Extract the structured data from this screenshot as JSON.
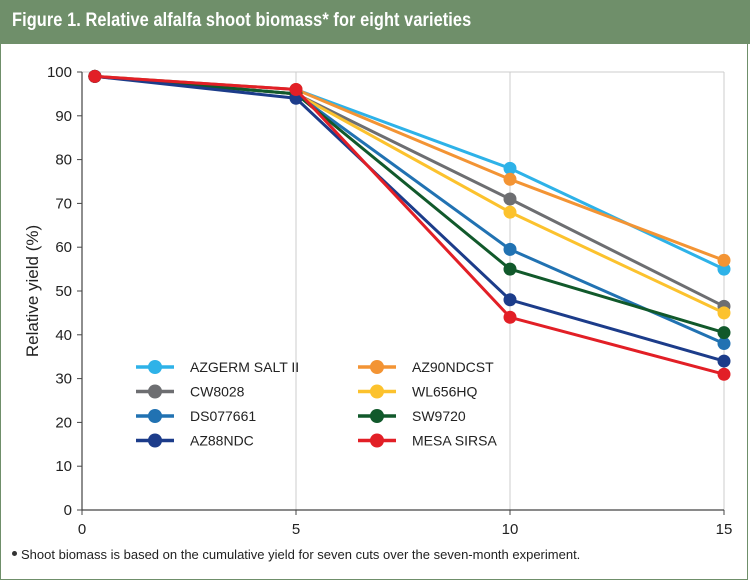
{
  "title": "Figure 1. Relative alfalfa shoot biomass* for eight varieties",
  "footnote": "Shoot biomass is based on the cumulative yield for seven cuts over the seven-month experiment.",
  "colors": {
    "header_bg": "#6f8f6a",
    "grid": "#cccccc",
    "axis": "#444444"
  },
  "chart_data": {
    "type": "line",
    "title": "Figure 1. Relative alfalfa shoot biomass* for eight varieties",
    "xlabel": "",
    "ylabel": "Relative yield (%)",
    "x": [
      0.3,
      5,
      10,
      15
    ],
    "xlim": [
      0,
      15
    ],
    "ylim": [
      0,
      100
    ],
    "x_ticks": [
      0,
      5,
      10,
      15
    ],
    "y_ticks": [
      0,
      10,
      20,
      30,
      40,
      50,
      60,
      70,
      80,
      90,
      100
    ],
    "grid": "vertical",
    "legend_position": "bottom-left",
    "series": [
      {
        "name": "AZGERM SALT II",
        "color": "#2eb2e8",
        "values": [
          99,
          96,
          78,
          55
        ]
      },
      {
        "name": "AZ90NDCST",
        "color": "#f39434",
        "values": [
          99,
          96,
          75.5,
          57
        ]
      },
      {
        "name": "CW8028",
        "color": "#6d6e71",
        "values": [
          99,
          95,
          71,
          46.5
        ]
      },
      {
        "name": "WL656HQ",
        "color": "#fcc22d",
        "values": [
          99,
          95,
          68,
          45
        ]
      },
      {
        "name": "DS077661",
        "color": "#2172b2",
        "values": [
          99,
          95,
          59.5,
          38
        ]
      },
      {
        "name": "SW9720",
        "color": "#11592b",
        "values": [
          99,
          95,
          55,
          40.5
        ]
      },
      {
        "name": "AZ88NDC",
        "color": "#1c3c8a",
        "values": [
          99,
          94,
          48,
          34
        ]
      },
      {
        "name": "MESA SIRSA",
        "color": "#e21f26",
        "values": [
          99,
          96,
          44,
          31
        ]
      }
    ]
  }
}
